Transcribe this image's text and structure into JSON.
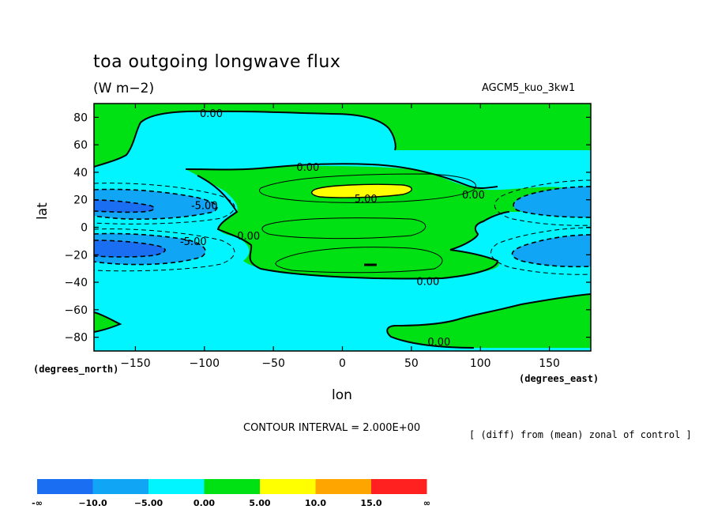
{
  "chart_data": {
    "type": "contour",
    "title": "toa outgoing longwave flux",
    "units": "(W m−2)",
    "model_label": "AGCM5_kuo_3kw1",
    "xlabel": "lon",
    "ylabel": "lat",
    "x_axis_note": "(degrees_east)",
    "y_axis_note": "(degrees_north)",
    "xlim": [
      -180,
      180
    ],
    "ylim": [
      -90,
      90
    ],
    "x_ticks": [
      -150,
      -100,
      -50,
      0,
      50,
      100,
      150
    ],
    "y_ticks": [
      80,
      60,
      40,
      20,
      0,
      -20,
      -40,
      -60,
      -80
    ],
    "x_tick_labels": [
      "−150",
      "−100",
      "−50",
      "0",
      "50",
      "100",
      "150"
    ],
    "y_tick_labels": [
      "80",
      "60",
      "40",
      "20",
      "0",
      "−20",
      "−40",
      "−60",
      "−80"
    ],
    "contour_interval_text": "CONTOUR INTERVAL = 2.000E+00",
    "description": "[ (diff) from (mean) zonal of control ]",
    "contour_labels": [
      {
        "text": "0.00",
        "lon": -95,
        "lat": 83
      },
      {
        "text": "0.00",
        "lon": -25,
        "lat": 44
      },
      {
        "text": "0.00",
        "lon": 95,
        "lat": 24
      },
      {
        "text": "5.00",
        "lon": 17,
        "lat": 21
      },
      {
        "text": "-5.00",
        "lon": -100,
        "lat": 16
      },
      {
        "text": "0.00",
        "lon": -68,
        "lat": -6
      },
      {
        "text": "-5.00",
        "lon": -108,
        "lat": -10
      },
      {
        "text": "0.00",
        "lon": 62,
        "lat": -39
      },
      {
        "text": "0.00",
        "lon": 70,
        "lat": -83
      }
    ],
    "legend": {
      "bounds": [
        "-∞",
        "−10.0",
        "−5.00",
        "0.00",
        "5.00",
        "10.0",
        "15.0",
        "∞"
      ],
      "colors": [
        "#1a6ef2",
        "#11a5f5",
        "#00f5ff",
        "#00e114",
        "#ffff00",
        "#ffa500",
        "#ff2020"
      ]
    },
    "fill_colors": {
      "deep_blue": "#1a6ef2",
      "mid_blue": "#11a5f5",
      "cyan": "#00f5ff",
      "green": "#00e114",
      "yellow": "#ffff00"
    }
  }
}
